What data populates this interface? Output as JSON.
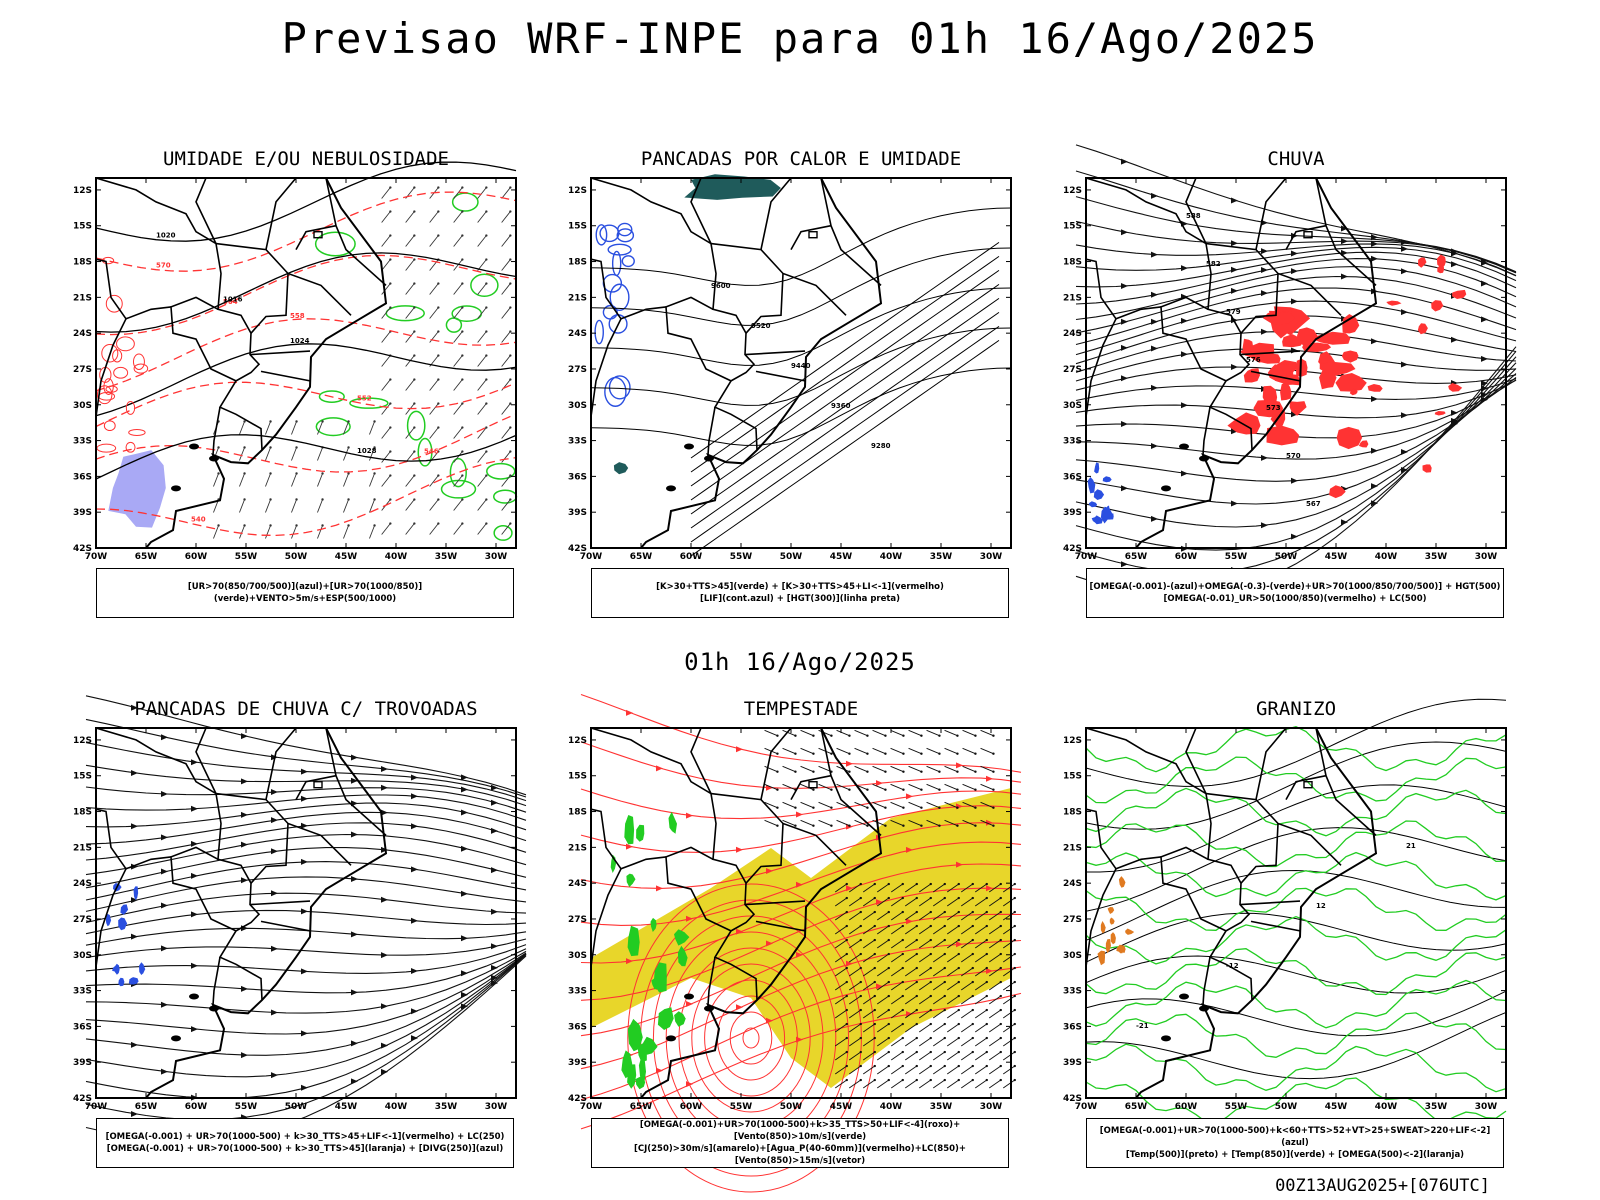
{
  "title": "Previsao WRF-INPE  para 01h 16/Ago/2025",
  "subtitle": "01h 16/Ago/2025",
  "footer": "00Z13AUG2025+[076UTC]",
  "axes": {
    "lat_labels": [
      "12S",
      "15S",
      "18S",
      "21S",
      "24S",
      "27S",
      "30S",
      "33S",
      "36S",
      "39S",
      "42S"
    ],
    "lon_labels": [
      "70W",
      "65W",
      "60W",
      "55W",
      "50W",
      "45W",
      "40W",
      "35W",
      "30W"
    ]
  },
  "colors": {
    "blue": "#2a4fe0",
    "green": "#22cc22",
    "red": "#ff3333",
    "yellow": "#e8d62a",
    "lavender": "#a9a9f5",
    "teal": "#1f5b5b",
    "orange": "#e07a20"
  },
  "panels": [
    {
      "title": "UMIDADE E/OU NEBULOSIDADE",
      "legend": [
        "[UR>70(850/700/500)](azul)+[UR>70(1000/850)](verde)+VENTO>5m/s+ESP(500/1000)"
      ],
      "contour_labels": [
        "1020",
        "1016",
        "1024",
        "1028",
        "570",
        "564",
        "558",
        "552",
        "546",
        "540"
      ]
    },
    {
      "title": "PANCADAS POR CALOR E UMIDADE",
      "legend": [
        "[K>30+TTS>45](verde) + [K>30+TTS>45+LI<-1](vermelho)",
        "[LIF](cont.azul) + [HGT(300)](linha preta)"
      ],
      "contour_labels": [
        "9600",
        "9520",
        "9440",
        "9360",
        "9280"
      ]
    },
    {
      "title": "CHUVA",
      "legend": [
        "[OMEGA(-0.001)-(azul)+OMEGA(-0.3)-(verde)+UR>70(1000/850/700/500)] + HGT(500)",
        "[OMEGA(-0.01)_UR>50(1000/850)(vermelho) + LC(500)"
      ],
      "contour_labels": [
        "588",
        "582",
        "579",
        "576",
        "573",
        "570",
        "567"
      ]
    },
    {
      "title": "PANCADAS DE CHUVA C/ TROVOADAS",
      "legend": [
        "[OMEGA(-0.001) + UR>70(1000-500) + k>30_TTS>45+LIF<-1](vermelho) + LC(250)",
        "[OMEGA(-0.001) + UR>70(1000-500) + k>30_TTS>45](laranja) + [DIVG(250)](azul)"
      ],
      "contour_labels": []
    },
    {
      "title": "TEMPESTADE",
      "legend": [
        "[OMEGA(-0.001)+UR>70(1000-500)+k>35_TTS>50+LIF<-4](roxo)+[Vento(850)>10m/s](verde)",
        "[CJ(250)>30m/s](amarelo)+[Agua_P(40-60mm)](vermelho)+LC(850)+[Vento(850)>15m/s](vetor)"
      ],
      "contour_labels": []
    },
    {
      "title": "GRANIZO",
      "legend": [
        "[OMEGA(-0.001)+UR>70(1000-500)+k<60+TTS>52+VT>25+SWEAT>220+LIF<-2](azul)",
        "[Temp(500)](preto) + [Temp(850)](verde) + [OMEGA(500)<-2](laranja)"
      ],
      "contour_labels": [
        "-21",
        "-12",
        "12",
        "21"
      ]
    }
  ]
}
